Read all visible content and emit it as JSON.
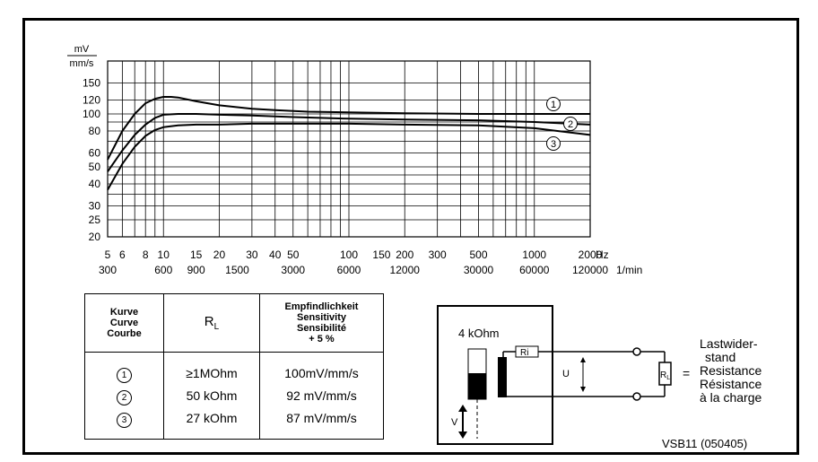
{
  "chart_data": {
    "type": "line",
    "xscale": "log",
    "yscale": "log",
    "xlim": [
      5,
      2000
    ],
    "ylim": [
      20,
      200
    ],
    "ylabel_top": "mV",
    "ylabel_bottom": "mm/s",
    "yticks": [
      20,
      25,
      30,
      40,
      50,
      60,
      80,
      100,
      120,
      150
    ],
    "xticks_hz": [
      {
        "v": 5,
        "label": "5"
      },
      {
        "v": 6,
        "label": "6"
      },
      {
        "v": 8,
        "label": "8"
      },
      {
        "v": 10,
        "label": "10"
      },
      {
        "v": 15,
        "label": "15"
      },
      {
        "v": 20,
        "label": "20"
      },
      {
        "v": 30,
        "label": "30"
      },
      {
        "v": 40,
        "label": "40"
      },
      {
        "v": 50,
        "label": "50"
      },
      {
        "v": 100,
        "label": "100"
      },
      {
        "v": 150,
        "label": "150"
      },
      {
        "v": 200,
        "label": "200"
      },
      {
        "v": 300,
        "label": "300"
      },
      {
        "v": 500,
        "label": "500"
      },
      {
        "v": 1000,
        "label": "1000"
      },
      {
        "v": 2000,
        "label": "2000"
      }
    ],
    "x_unit_hz": "Hz",
    "xticks_rpm": [
      {
        "v": 5,
        "label": "300"
      },
      {
        "v": 10,
        "label": "600"
      },
      {
        "v": 15,
        "label": "900"
      },
      {
        "v": 25,
        "label": "1500"
      },
      {
        "v": 50,
        "label": "3000"
      },
      {
        "v": 100,
        "label": "6000"
      },
      {
        "v": 200,
        "label": "12000"
      },
      {
        "v": 500,
        "label": "30000"
      },
      {
        "v": 1000,
        "label": "60000"
      },
      {
        "v": 2000,
        "label": "120000"
      }
    ],
    "x_unit_rpm": "1/min",
    "grid": true,
    "series": [
      {
        "name": "1",
        "x": [
          5,
          6,
          7,
          8,
          9,
          10,
          11,
          12,
          15,
          20,
          30,
          40,
          60,
          100,
          200,
          500,
          1000,
          2000
        ],
        "y": [
          55,
          80,
          100,
          115,
          122,
          125,
          125,
          124,
          118,
          112,
          107,
          105,
          103,
          102,
          101,
          100,
          100,
          100
        ]
      },
      {
        "name": "2",
        "x": [
          5,
          6,
          7,
          8,
          9,
          10,
          12,
          15,
          20,
          30,
          50,
          100,
          200,
          500,
          1000,
          2000
        ],
        "y": [
          47,
          62,
          76,
          87,
          95,
          99,
          100,
          100,
          99,
          98,
          96,
          94,
          93,
          92,
          90,
          87
        ]
      },
      {
        "name": "3",
        "x": [
          5,
          6,
          7,
          8,
          9,
          10,
          12,
          15,
          20,
          30,
          50,
          100,
          200,
          500,
          1000,
          2000
        ],
        "y": [
          37,
          52,
          65,
          75,
          81,
          84,
          86,
          87,
          87,
          88,
          88,
          88,
          87,
          86,
          83,
          76
        ]
      }
    ]
  },
  "table": {
    "header_curve": [
      "Kurve",
      "Curve",
      "Courbe"
    ],
    "header_rl_main": "R",
    "header_rl_sub": "L",
    "header_sens": [
      "Empfindlichkeit",
      "Sensitivity",
      "Sensibilité",
      "+ 5 %"
    ],
    "rows": [
      {
        "curve": "1",
        "rl": "≥1MOhm",
        "sens": "100mV/mm/s"
      },
      {
        "curve": "2",
        "rl": "50 kOhm",
        "sens": "92 mV/mm/s"
      },
      {
        "curve": "3",
        "rl": "27 kOhm",
        "sens": "87 mV/mm/s"
      }
    ]
  },
  "circuit": {
    "ri_value": "4 kOhm",
    "ri_label": "Ri",
    "u_label": "U",
    "v_label": "V",
    "rl_main": "R",
    "rl_sub": "L",
    "equals": "=",
    "load_label": [
      "Lastwider-",
      "stand",
      "Resistance",
      "Résistance",
      "à la charge"
    ]
  },
  "footer": "VSB11 (050405)"
}
